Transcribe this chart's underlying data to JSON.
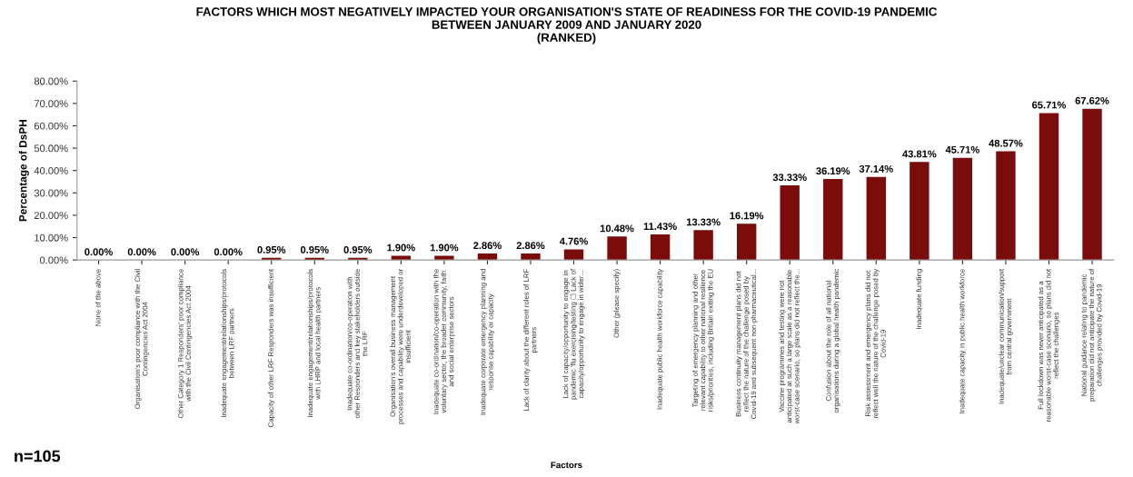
{
  "chart_data": {
    "type": "bar",
    "title": "FACTORS WHICH MOST NEGATIVELY IMPACTED YOUR ORGANISATION'S STATE OF READINESS FOR THE COVID-19 PANDEMIC\nBETWEEN JANUARY 2009 AND JANUARY 2020\n(RANKED)",
    "xlabel": "Factors",
    "ylabel": "Percentage of DsPH",
    "annotations": [
      "n=105"
    ],
    "categories": [
      "None of the above",
      "Organisation's poor compliance with the Civil\nContingencies Act 2004",
      "Other Category 1 Responders' poor compliance\nwith the Civil Contingencies Act 2004",
      "Inadequate engagement/relationships/protocols\nbetween LRF partners",
      "Capacity of other LRF Responders was insufficient",
      "Inadequate engagement/relationships/protocols\nwith LHRP and local health partners",
      "Inadequate co-ordination/co-operation with\nother Responders and key stakeholders outside\nthe LRF",
      "Organisation's overall business management\nprocesses and capability were underdeveloped or\ninsufficient",
      "Inadequate co-ordination/co-operation with the\nvoluntary sector, the broader community, faith\nand social enterprise sectors",
      "Inadequate corporate emergency planning and\nresponse capability or capacity",
      "Lack of clarity about the different roles of LRF\npartners",
      "Lack of capacity/opportunity to engage in\npandemic 'flu exercising/testing ☐ Lack of\ncapacity/opportunity to engage in wider...",
      "Other (please specify)",
      "Inadequate public health workforce capability",
      "Targeting of emergency planning and other\nrelevant capability to other national resilience\nrisks/priorities, including Britain exiting the EU",
      "Business continuity management plans did not\nreflect the nature of the challenge posed by\nCovid-19 and subsequent non-pharmaceutical...",
      "Vaccine programmes and testing were not\nanticipated at such a large scale as a reasonable\nworst-case scenario, so plans did not reflect the...",
      "Confusion about the role of all national\norganisations during a global health pandemic",
      "Risk assessment and emergency plans did not\nreflect well the nature of the challenge posed by\nCovid-19",
      "Inadequate funding",
      "Inadequate capacity in public health workforce",
      "Inadequate/unclear communication/support\nfrom central government",
      "Full lockdown was never anticipated as a\nreasonable worst-case scenario, so plans did not\nreflect the challenges",
      "National guidance relating to pandemic\npreparation did not anticipate the nature of\nchallenges provided by Covid-19"
    ],
    "values": [
      0,
      0,
      0,
      0,
      0.95,
      0.95,
      0.95,
      1.9,
      1.9,
      2.86,
      2.86,
      4.76,
      10.48,
      11.43,
      13.33,
      16.19,
      33.33,
      36.19,
      37.14,
      43.81,
      45.71,
      48.57,
      65.71,
      67.62
    ],
    "value_labels": [
      "0.00%",
      "0.00%",
      "0.00%",
      "0.00%",
      "0.95%",
      "0.95%",
      "0.95%",
      "1.90%",
      "1.90%",
      "2.86%",
      "2.86%",
      "4.76%",
      "10.48%",
      "11.43%",
      "13.33%",
      "16.19%",
      "33.33%",
      "36.19%",
      "37.14%",
      "43.81%",
      "45.71%",
      "48.57%",
      "65.71%",
      "67.62%"
    ],
    "color": "#7b0c0c",
    "ylim": [
      0,
      80
    ],
    "yticks": [
      {
        "value": 0,
        "label": "0.00%"
      },
      {
        "value": 10,
        "label": "10.00%"
      },
      {
        "value": 20,
        "label": "20.00%"
      },
      {
        "value": 30,
        "label": "30.00%"
      },
      {
        "value": 40,
        "label": "40.00%"
      },
      {
        "value": 50,
        "label": "50.00%"
      },
      {
        "value": 60,
        "label": "60.00%"
      },
      {
        "value": 70,
        "label": "70.00%"
      },
      {
        "value": 80,
        "label": "80.00%"
      }
    ],
    "grid": false,
    "legend": false
  }
}
